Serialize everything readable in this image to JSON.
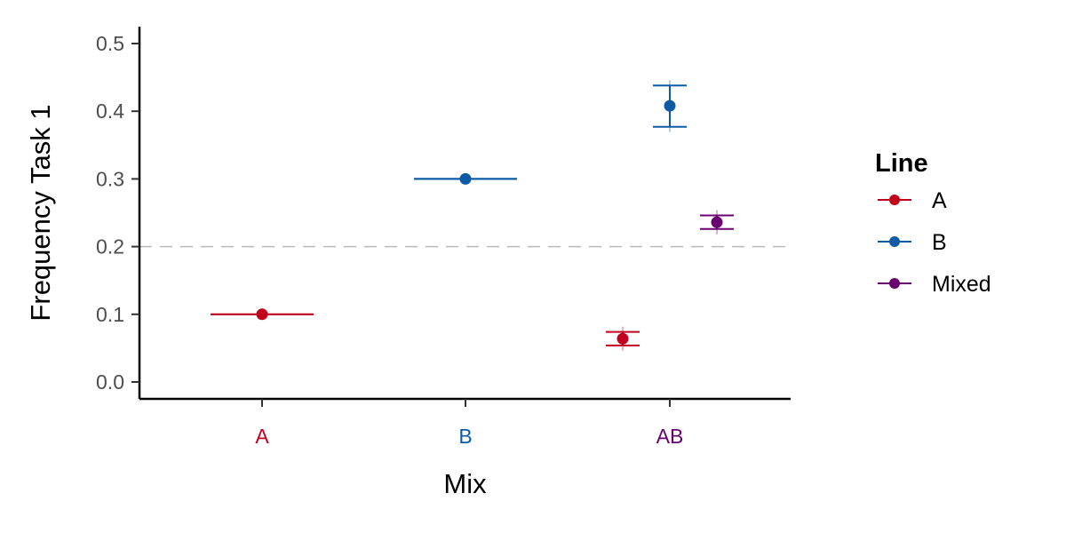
{
  "chart_data": {
    "type": "scatter",
    "xlabel": "Mix",
    "ylabel": "Frequency Task 1",
    "categories": [
      "A",
      "B",
      "AB"
    ],
    "category_colors": [
      "#C1001E",
      "#0E5BA5",
      "#6A0070"
    ],
    "ylim": [
      -0.025,
      0.525
    ],
    "yticks": [
      0.0,
      0.1,
      0.2,
      0.3,
      0.4,
      0.5
    ],
    "ytick_labels": [
      "0.0",
      "0.1",
      "0.2",
      "0.3",
      "0.4",
      "0.5"
    ],
    "reference_line": {
      "y": 0.2,
      "style": "dashed",
      "color": "#bbbbbb"
    },
    "grid": false,
    "legend": {
      "title": "Line",
      "placement": "right"
    },
    "series": [
      {
        "name": "A",
        "color": "#C1001E",
        "points": [
          {
            "x": "A",
            "y": 0.1,
            "lower": 0.1,
            "upper": 0.1,
            "dodge": 0
          },
          {
            "x": "AB",
            "y": 0.064,
            "lower": 0.054,
            "upper": 0.074,
            "dodge": -1
          }
        ]
      },
      {
        "name": "B",
        "color": "#0E5BA5",
        "points": [
          {
            "x": "B",
            "y": 0.3,
            "lower": 0.3,
            "upper": 0.3,
            "dodge": 0
          },
          {
            "x": "AB",
            "y": 0.408,
            "lower": 0.377,
            "upper": 0.438,
            "dodge": 0
          }
        ]
      },
      {
        "name": "Mixed",
        "color": "#6A0070",
        "points": [
          {
            "x": "AB",
            "y": 0.236,
            "lower": 0.226,
            "upper": 0.246,
            "dodge": 1
          }
        ]
      }
    ]
  }
}
